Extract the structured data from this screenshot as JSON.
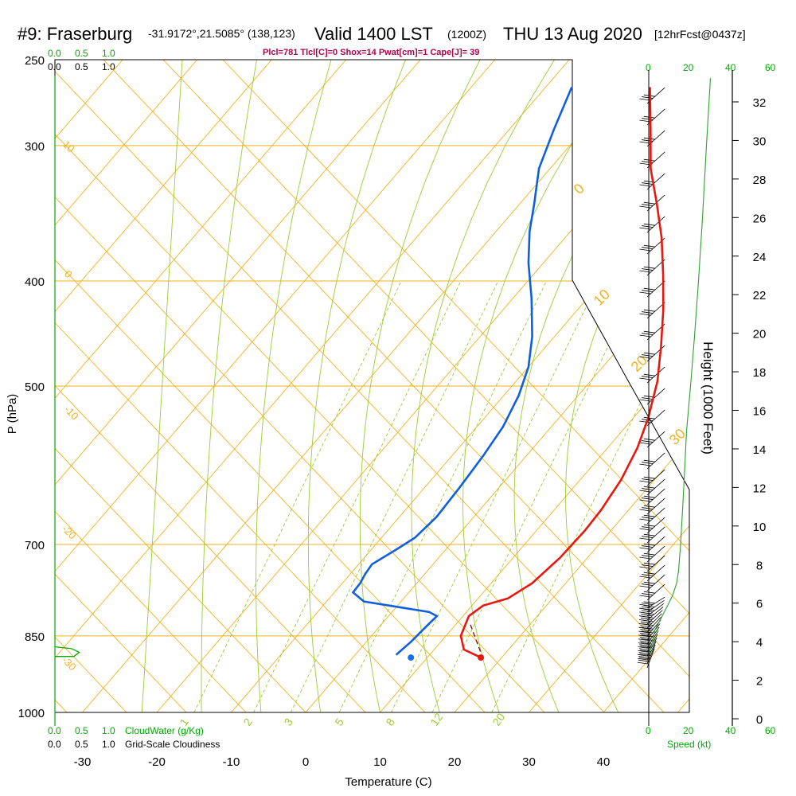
{
  "header": {
    "station": "#9: Fraserburg",
    "coords": "-31.9172°,21.5085° (138,123)",
    "valid": "Valid 1400 LST",
    "zulu": "(1200Z)",
    "date": "THU 13 Aug 2020",
    "forecast": "[12hrFcst@0437z]"
  },
  "stats_line": "Plcl=781 Tlcl[C]=0 Shox=14 Pwat[cm]=1 Cape[J]= 39",
  "top_scales": {
    "cloudwater_ticks": [
      "0.0",
      "0.5",
      "1.0"
    ],
    "cloudiness_ticks": [
      "0.0",
      "0.5",
      "1.0"
    ]
  },
  "bottom_scales": {
    "cloudwater_ticks": [
      "0.0",
      "0.5",
      "1.0"
    ],
    "cloudwater_label": "CloudWater (g/Kg)",
    "cloudiness_ticks": [
      "0.0",
      "0.5",
      "1.0"
    ],
    "cloudiness_label": "Grid-Scale Cloudiness",
    "speed_ticks": [
      "0",
      "20",
      "40",
      "60"
    ],
    "speed_label": "Speed (kt)"
  },
  "speed_top_ticks": [
    "0",
    "20",
    "40",
    "60"
  ],
  "chart_data": {
    "type": "skew-t",
    "xlabel": "Temperature (C)",
    "ylabel": "P (hPa)",
    "right_label": "Height (1000 Feet)",
    "x_ticks": [
      -30,
      -20,
      -10,
      0,
      10,
      20,
      30,
      40
    ],
    "p_ticks": [
      250,
      300,
      400,
      500,
      700,
      850,
      1000
    ],
    "height_ticks": [
      0,
      2,
      4,
      6,
      8,
      10,
      12,
      14,
      16,
      18,
      20,
      22,
      24,
      26,
      28,
      30,
      32
    ],
    "isotherm_labels": [
      "10",
      "0",
      "-10",
      "-20",
      "-30",
      "0",
      "10",
      "20",
      "30"
    ],
    "mixing_ratio_labels": [
      "1",
      "2",
      "3",
      "5",
      "8",
      "12",
      "20"
    ],
    "temperature": {
      "name": "Temperature",
      "color": "#e8180f",
      "points": [
        [
          17.2,
          890
        ],
        [
          14,
          875
        ],
        [
          12,
          850
        ],
        [
          10.8,
          815
        ],
        [
          11.5,
          797
        ],
        [
          14,
          785
        ],
        [
          15.5,
          760
        ],
        [
          16.3,
          720
        ],
        [
          16.5,
          680
        ],
        [
          16.3,
          650
        ],
        [
          15.5,
          610
        ],
        [
          14,
          570
        ],
        [
          12,
          535
        ],
        [
          9,
          495
        ],
        [
          5.5,
          460
        ],
        [
          1.5,
          425
        ],
        [
          -2.5,
          395
        ],
        [
          -7,
          365
        ],
        [
          -11.5,
          340
        ],
        [
          -16.5,
          315
        ],
        [
          -21,
          290
        ],
        [
          -26,
          265
        ]
      ]
    },
    "dewpoint": {
      "name": "Dewpoint",
      "color": "#0f5fde",
      "points": [
        [
          5.5,
          885
        ],
        [
          6,
          860
        ],
        [
          6.3,
          830
        ],
        [
          6.5,
          815
        ],
        [
          5,
          808
        ],
        [
          -5,
          790
        ],
        [
          -7.5,
          775
        ],
        [
          -7.6,
          760
        ],
        [
          -8,
          745
        ],
        [
          -8.2,
          730
        ],
        [
          -6.8,
          710
        ],
        [
          -5.5,
          690
        ],
        [
          -5,
          660
        ],
        [
          -5.3,
          620
        ],
        [
          -5.8,
          580
        ],
        [
          -6.5,
          545
        ],
        [
          -8,
          510
        ],
        [
          -10,
          480
        ],
        [
          -13,
          450
        ],
        [
          -17.5,
          415
        ],
        [
          -22,
          385
        ],
        [
          -25.5,
          360
        ],
        [
          -28,
          340
        ],
        [
          -31.5,
          315
        ],
        [
          -34,
          290
        ],
        [
          -36.5,
          265
        ]
      ]
    },
    "surface_temp": 17.2,
    "surface_dewpoint": 7.8,
    "surface_pressure": 890,
    "lcl_segment": [
      [
        12,
        830
      ],
      [
        17,
        885
      ]
    ],
    "wind_speed_profile_kt": [
      [
        0,
        885
      ],
      [
        2,
        860
      ],
      [
        3,
        840
      ],
      [
        6,
        820
      ],
      [
        9,
        800
      ],
      [
        12,
        780
      ],
      [
        14,
        760
      ],
      [
        15,
        740
      ],
      [
        16,
        700
      ],
      [
        17,
        650
      ],
      [
        18,
        600
      ],
      [
        19,
        550
      ],
      [
        21,
        500
      ],
      [
        23,
        450
      ],
      [
        25,
        400
      ],
      [
        27,
        350
      ],
      [
        29,
        300
      ],
      [
        31,
        260
      ]
    ],
    "cloudwater_profile": [
      [
        0,
        870
      ],
      [
        0.3,
        873
      ],
      [
        0.45,
        880
      ],
      [
        0.35,
        888
      ],
      [
        0,
        888
      ]
    ]
  }
}
